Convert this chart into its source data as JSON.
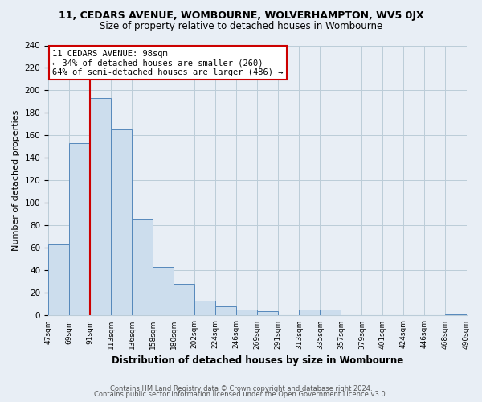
{
  "title_line1": "11, CEDARS AVENUE, WOMBOURNE, WOLVERHAMPTON, WV5 0JX",
  "title_line2": "Size of property relative to detached houses in Wombourne",
  "xlabel": "Distribution of detached houses by size in Wombourne",
  "ylabel": "Number of detached properties",
  "bar_color": "#ccdded",
  "bar_edge_color": "#5588bb",
  "background_color": "#e8eef5",
  "plot_bg_color": "#e8eef5",
  "bins": [
    "47sqm",
    "69sqm",
    "91sqm",
    "113sqm",
    "136sqm",
    "158sqm",
    "180sqm",
    "202sqm",
    "224sqm",
    "246sqm",
    "269sqm",
    "291sqm",
    "313sqm",
    "335sqm",
    "357sqm",
    "379sqm",
    "401sqm",
    "424sqm",
    "446sqm",
    "468sqm",
    "490sqm"
  ],
  "values": [
    63,
    153,
    193,
    165,
    85,
    43,
    28,
    13,
    8,
    5,
    4,
    0,
    5,
    5,
    0,
    0,
    0,
    0,
    0,
    1
  ],
  "ylim": [
    0,
    240
  ],
  "yticks": [
    0,
    20,
    40,
    60,
    80,
    100,
    120,
    140,
    160,
    180,
    200,
    220,
    240
  ],
  "vline_x": 2,
  "vline_color": "#cc0000",
  "annotation_title": "11 CEDARS AVENUE: 98sqm",
  "annotation_line1": "← 34% of detached houses are smaller (260)",
  "annotation_line2": "64% of semi-detached houses are larger (486) →",
  "annotation_box_edge": "#cc0000",
  "footer_line1": "Contains HM Land Registry data © Crown copyright and database right 2024.",
  "footer_line2": "Contains public sector information licensed under the Open Government Licence v3.0.",
  "grid_color": "#bbccd8",
  "title_fontsize": 9,
  "subtitle_fontsize": 8.5,
  "footer_fontsize": 6
}
